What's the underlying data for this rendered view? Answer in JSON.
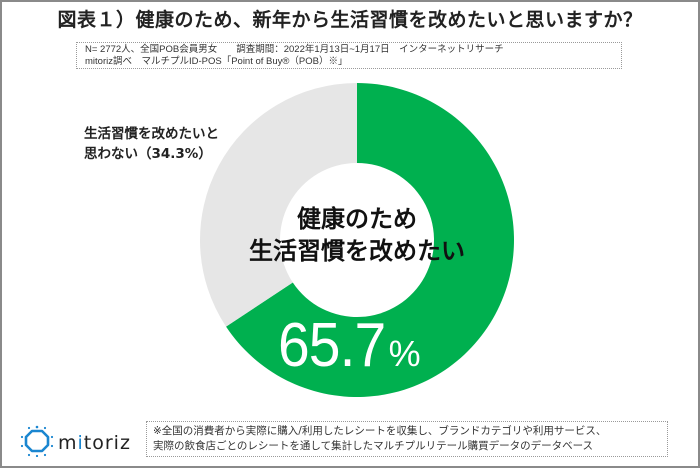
{
  "title": "図表１）健康のため、新年から生活習慣を改めたいと思いますか？",
  "survey_info": {
    "line1": "N= 2772人、全国POB会員男女　　調査期間：2022年1月13日~1月17日　インターネットリサーチ",
    "line2": "mitoriz調べ　マルチプルID-POS「Point of Buy®（POB）※」"
  },
  "chart_data": {
    "type": "pie",
    "variant": "donut",
    "title": "図表１）健康のため、新年から生活習慣を改めたいと思いますか？",
    "categories": [
      "健康のため生活習慣を改めたい",
      "生活習慣を改めたいと思わない"
    ],
    "values": [
      65.7,
      34.3
    ],
    "unit": "%",
    "colors": [
      "#00b04f",
      "#e6e6e6"
    ],
    "center_label": {
      "line1": "健康のため",
      "line2": "生活習慣を改めたい",
      "value": "65.7",
      "unit": "%"
    },
    "annotations": [
      {
        "label_line1": "生活習慣を改めたいと",
        "label_line2": "思わない（34.3%）"
      }
    ]
  },
  "legend": {
    "other_line1": "生活習慣を改めたいと",
    "other_line2": "思わない（34.3%）"
  },
  "logo": {
    "text_pre": "m",
    "text_accent": "i",
    "text_post": "toriz",
    "icon": "mitoriz-logo-icon",
    "color": "#1a86d0"
  },
  "footnote": {
    "line1": "※全国の消費者から実際に購入/利用したレシートを収集し、ブランドカテゴリや利用サービス、",
    "line2": "実際の飲食店ごとのレシートを通して集計したマルチプルリテール購買データのデータベース"
  }
}
